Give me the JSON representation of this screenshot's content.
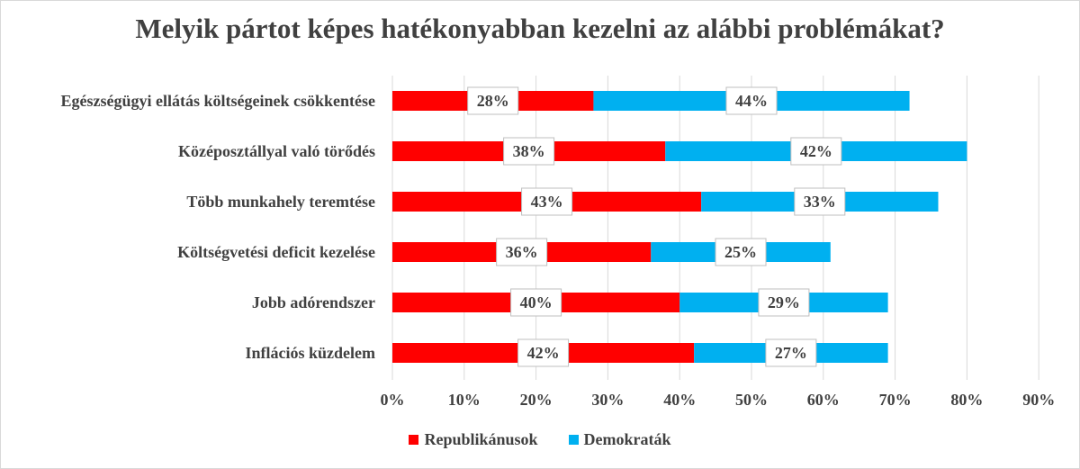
{
  "chart_data": {
    "type": "bar",
    "orientation": "horizontal",
    "stacked": true,
    "title": "Melyik pártot képes hatékonyabban kezelni az alábbi problémákat?",
    "categories": [
      "Egészségügyi ellátás költségeinek csökkentése",
      "Középosztállyal való törődés",
      "Több munkahely teremtése",
      "Költségvetési deficit kezelése",
      "Jobb adórendszer",
      "Inflációs küzdelem"
    ],
    "series": [
      {
        "name": "Republikánusok",
        "color": "#ff0000",
        "values": [
          28,
          38,
          43,
          36,
          40,
          42
        ]
      },
      {
        "name": "Demokraták",
        "color": "#00b0f0",
        "values": [
          44,
          42,
          33,
          25,
          29,
          27
        ]
      }
    ],
    "data_labels": {
      "Republikánusok": [
        "28%",
        "38%",
        "43%",
        "36%",
        "40%",
        "42%"
      ],
      "Demokraták": [
        "44%",
        "42%",
        "33%",
        "25%",
        "29%",
        "27%"
      ]
    },
    "xlim": [
      0,
      90
    ],
    "x_ticks": [
      "0%",
      "10%",
      "20%",
      "30%",
      "40%",
      "50%",
      "60%",
      "70%",
      "80%",
      "90%"
    ],
    "x_tick_values": [
      0,
      10,
      20,
      30,
      40,
      50,
      60,
      70,
      80,
      90
    ],
    "grid": "vertical",
    "gridline_color": "#d9d9d9",
    "legend_position": "bottom"
  }
}
